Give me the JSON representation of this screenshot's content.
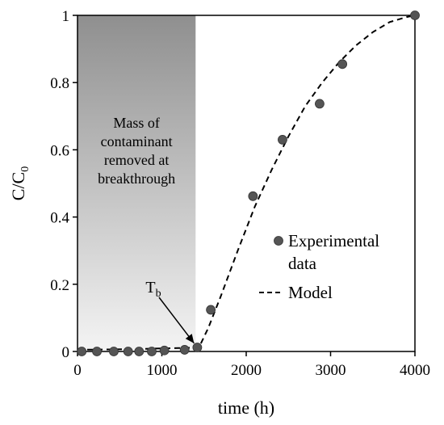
{
  "chart_data": {
    "type": "scatter",
    "xlabel": "time (h)",
    "ylabel": {
      "main": "C/C",
      "sub": "0"
    },
    "xlim": [
      0,
      4000
    ],
    "ylim": [
      0,
      1
    ],
    "xticks": [
      "0",
      "1000",
      "2000",
      "3000",
      "4000"
    ],
    "yticks": [
      "0",
      "0.2",
      "0.4",
      "0.6",
      "0.8",
      "1"
    ],
    "grid": false,
    "legend_position": "right-middle",
    "shaded_region": {
      "x_range": [
        0,
        1400
      ],
      "label_lines": [
        "Mass of",
        "contaminant",
        "removed at",
        "breakthrough"
      ]
    },
    "annotation": {
      "main": "T",
      "sub": "b",
      "points_to": {
        "x": 1420,
        "y": 0.01
      }
    },
    "series": [
      {
        "name": "Experimental data",
        "kind": "points",
        "color": "#555555",
        "points": [
          {
            "x": 50,
            "y": 0
          },
          {
            "x": 230,
            "y": 0
          },
          {
            "x": 430,
            "y": 0
          },
          {
            "x": 600,
            "y": 0
          },
          {
            "x": 730,
            "y": 0
          },
          {
            "x": 880,
            "y": 0
          },
          {
            "x": 1030,
            "y": 0.003
          },
          {
            "x": 1270,
            "y": 0.005
          },
          {
            "x": 1420,
            "y": 0.012
          },
          {
            "x": 1580,
            "y": 0.124
          },
          {
            "x": 2080,
            "y": 0.462
          },
          {
            "x": 2430,
            "y": 0.63
          },
          {
            "x": 2870,
            "y": 0.737
          },
          {
            "x": 3140,
            "y": 0.855
          },
          {
            "x": 4000,
            "y": 1.0
          }
        ]
      },
      {
        "name": "Model",
        "kind": "line",
        "style": "dashed",
        "color": "#000000",
        "points": [
          {
            "x": 0,
            "y": 0.005
          },
          {
            "x": 400,
            "y": 0.006
          },
          {
            "x": 800,
            "y": 0.008
          },
          {
            "x": 1200,
            "y": 0.01
          },
          {
            "x": 1440,
            "y": 0.012
          },
          {
            "x": 1550,
            "y": 0.07
          },
          {
            "x": 1700,
            "y": 0.165
          },
          {
            "x": 1900,
            "y": 0.3
          },
          {
            "x": 2100,
            "y": 0.43
          },
          {
            "x": 2300,
            "y": 0.54
          },
          {
            "x": 2500,
            "y": 0.64
          },
          {
            "x": 2700,
            "y": 0.73
          },
          {
            "x": 2900,
            "y": 0.8
          },
          {
            "x": 3100,
            "y": 0.86
          },
          {
            "x": 3300,
            "y": 0.91
          },
          {
            "x": 3500,
            "y": 0.95
          },
          {
            "x": 3700,
            "y": 0.98
          },
          {
            "x": 3900,
            "y": 0.995
          },
          {
            "x": 4000,
            "y": 1.0
          }
        ]
      }
    ]
  }
}
